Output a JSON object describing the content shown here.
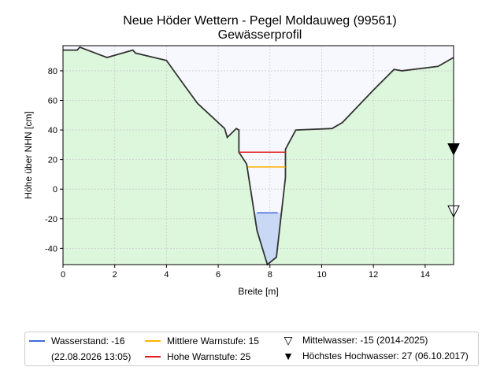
{
  "chart_data": {
    "type": "area",
    "title": "Neue Höder Wettern - Pegel Moldauweg (99561)",
    "subtitle": "Gewässerprofil",
    "xlabel": "Breite [m]",
    "ylabel": "Höhe über NHN [cm]",
    "xlim": [
      0,
      15.1
    ],
    "ylim": [
      -51,
      97
    ],
    "xticks": [
      0,
      2,
      4,
      6,
      8,
      10,
      12,
      14
    ],
    "yticks": [
      -40,
      -20,
      0,
      20,
      40,
      60,
      80
    ],
    "grid": true,
    "profile": {
      "x": [
        0,
        0.55,
        0.65,
        1.7,
        2.7,
        2.8,
        4.0,
        4.7,
        5.2,
        6.25,
        6.35,
        6.7,
        6.8,
        6.8,
        7.1,
        7.5,
        7.9,
        8.25,
        8.6,
        8.6,
        9.0,
        10.4,
        10.8,
        12.0,
        12.8,
        13.1,
        14.5,
        15.1
      ],
      "y": [
        94,
        94,
        96,
        89,
        94,
        92,
        87,
        70,
        58,
        41,
        35,
        41,
        40,
        25,
        17,
        -28,
        -51,
        -46,
        8,
        27,
        40,
        41,
        45,
        67,
        81,
        80,
        83,
        89
      ]
    },
    "water_level": {
      "value": -16,
      "x_range": [
        7.5,
        8.3
      ],
      "color": "#4169e1",
      "fill": "#c9d8f5"
    },
    "warning_levels": [
      {
        "name": "Mittlere Warnstufe",
        "value": 15,
        "x_range": [
          7.15,
          8.6
        ],
        "color": "#ffb400"
      },
      {
        "name": "Hohe Warnstufe",
        "value": 25,
        "x_range": [
          6.8,
          8.6
        ],
        "color": "#e02020"
      }
    ],
    "markers": [
      {
        "name": "Mittelwasser",
        "value": -15,
        "style": "open-triangle-down"
      },
      {
        "name": "Höchstes Hochwasser",
        "value": 27,
        "style": "filled-triangle-down"
      }
    ],
    "colors": {
      "ground": "#dcf7dc",
      "air": "#f7f7fe",
      "profile_line": "#333333"
    }
  },
  "legend": {
    "water_level": "Wasserstand: -16",
    "water_level_date": "(22.08.2026 13:05)",
    "mid_warning": "Mittlere Warnstufe: 15",
    "high_warning": "Hohe Warnstufe: 25",
    "mean_water": "Mittelwasser: -15 (2014-2025)",
    "highest_flood": "Höchstes Hochwasser: 27 (06.10.2017)",
    "placement": "bottom"
  }
}
